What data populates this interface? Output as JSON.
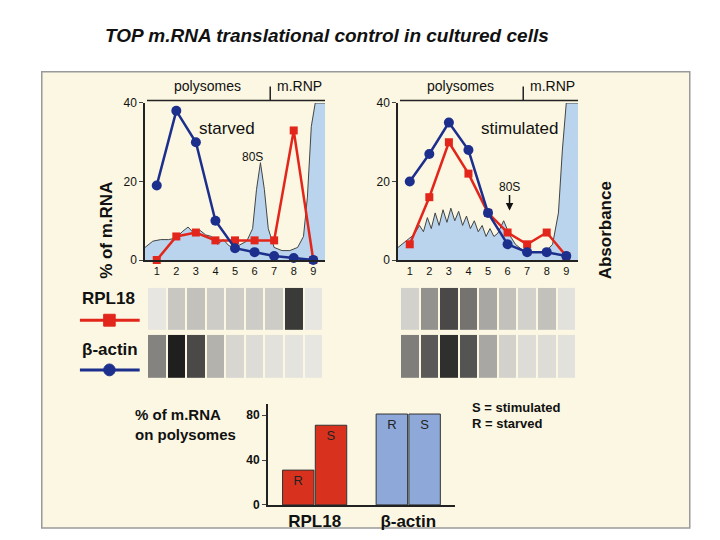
{
  "title": "TOP m.RNA translational control in cultured cells",
  "chart_data": [
    {
      "type": "line",
      "title": "starved",
      "ylabel": "% of m.RNA",
      "x": [
        1,
        2,
        3,
        4,
        5,
        6,
        7,
        8,
        9
      ],
      "xlim": [
        0.4,
        9.6
      ],
      "xticks": [
        1,
        2,
        3,
        4,
        5,
        6,
        7,
        8,
        9
      ],
      "ylim": [
        0,
        40
      ],
      "yticks": [
        0,
        20,
        40
      ],
      "y2lim": [
        0,
        1
      ],
      "y2ticks": [],
      "grid": false,
      "annotations": [
        "polysomes",
        "m.RNP",
        "80S"
      ],
      "series": [
        {
          "name": "RPL18",
          "type": "line",
          "color": "#e3261b",
          "marker": "square",
          "values": [
            0,
            6,
            7,
            5,
            5,
            5,
            5,
            33,
            0
          ]
        },
        {
          "name": "β-actin",
          "type": "line",
          "color": "#1c2f8c",
          "marker": "circle",
          "values": [
            19,
            38,
            30,
            10,
            3,
            2,
            1,
            0.5,
            0
          ]
        },
        {
          "type": "area",
          "axis": "y2",
          "color": "#b9d4ec",
          "x": [
            0.4,
            0.8,
            1.2,
            1.6,
            2.0,
            2.3,
            2.6,
            2.9,
            3.2,
            3.5,
            3.8,
            4.1,
            4.4,
            4.7,
            5.0,
            5.3,
            5.6,
            5.9,
            6.1,
            6.3,
            6.5,
            6.7,
            7.0,
            7.4,
            7.8,
            8.2,
            8.5,
            8.7,
            8.9,
            9.1,
            9.3,
            9.6
          ],
          "values": [
            0.08,
            0.12,
            0.13,
            0.13,
            0.14,
            0.18,
            0.21,
            0.17,
            0.19,
            0.16,
            0.15,
            0.1,
            0.13,
            0.09,
            0.08,
            0.1,
            0.12,
            0.2,
            0.45,
            0.62,
            0.45,
            0.2,
            0.08,
            0.06,
            0.06,
            0.08,
            0.15,
            0.4,
            0.85,
            1.0,
            1.0,
            1.0
          ]
        }
      ]
    },
    {
      "type": "line",
      "title": "stimulated",
      "y2label": "Absorbance",
      "x": [
        1,
        2,
        3,
        4,
        5,
        6,
        7,
        8,
        9
      ],
      "xlim": [
        0.4,
        9.6
      ],
      "xticks": [
        1,
        2,
        3,
        4,
        5,
        6,
        7,
        8,
        9
      ],
      "ylim": [
        0,
        40
      ],
      "yticks": [
        0,
        20,
        40
      ],
      "y2lim": [
        0,
        1
      ],
      "y2ticks": [],
      "grid": false,
      "annotations": [
        "polysomes",
        "m.RNP",
        "80S"
      ],
      "series": [
        {
          "name": "RPL18",
          "type": "line",
          "color": "#e3261b",
          "marker": "square",
          "values": [
            4,
            16,
            30,
            22,
            12,
            7,
            4,
            7,
            1
          ]
        },
        {
          "name": "β-actin",
          "type": "line",
          "color": "#1c2f8c",
          "marker": "circle",
          "values": [
            20,
            27,
            35,
            28,
            12,
            4,
            2,
            2,
            1
          ]
        },
        {
          "type": "area",
          "axis": "y2",
          "color": "#b9d4ec",
          "x": [
            0.4,
            0.8,
            1.2,
            1.5,
            1.7,
            1.9,
            2.1,
            2.3,
            2.5,
            2.7,
            2.9,
            3.1,
            3.3,
            3.5,
            3.7,
            3.9,
            4.1,
            4.3,
            4.5,
            4.7,
            4.9,
            5.1,
            5.3,
            5.5,
            5.8,
            6.1,
            6.4,
            6.8,
            7.2,
            7.6,
            8.0,
            8.3,
            8.6,
            8.8,
            9.0,
            9.3,
            9.6
          ],
          "values": [
            0.08,
            0.12,
            0.16,
            0.22,
            0.18,
            0.27,
            0.2,
            0.3,
            0.22,
            0.32,
            0.24,
            0.33,
            0.25,
            0.31,
            0.22,
            0.28,
            0.2,
            0.25,
            0.18,
            0.22,
            0.15,
            0.2,
            0.15,
            0.17,
            0.25,
            0.16,
            0.1,
            0.06,
            0.05,
            0.05,
            0.06,
            0.1,
            0.3,
            0.7,
            1.0,
            1.0,
            1.0
          ]
        }
      ]
    },
    {
      "type": "bar",
      "ylabel": "% of m.RNA\non polysomes",
      "categories": [
        "RPL18",
        "β-actin"
      ],
      "colors": [
        "#d8321e",
        "#8ea9d9"
      ],
      "ylim": [
        0,
        90
      ],
      "yticks": [
        0,
        40,
        80
      ],
      "grid": false,
      "annotations": [
        "S = stimulated",
        "R = starved"
      ],
      "series": [
        {
          "name": "R",
          "values": [
            31,
            81
          ]
        },
        {
          "name": "S",
          "values": [
            71,
            81
          ]
        }
      ]
    }
  ]
}
